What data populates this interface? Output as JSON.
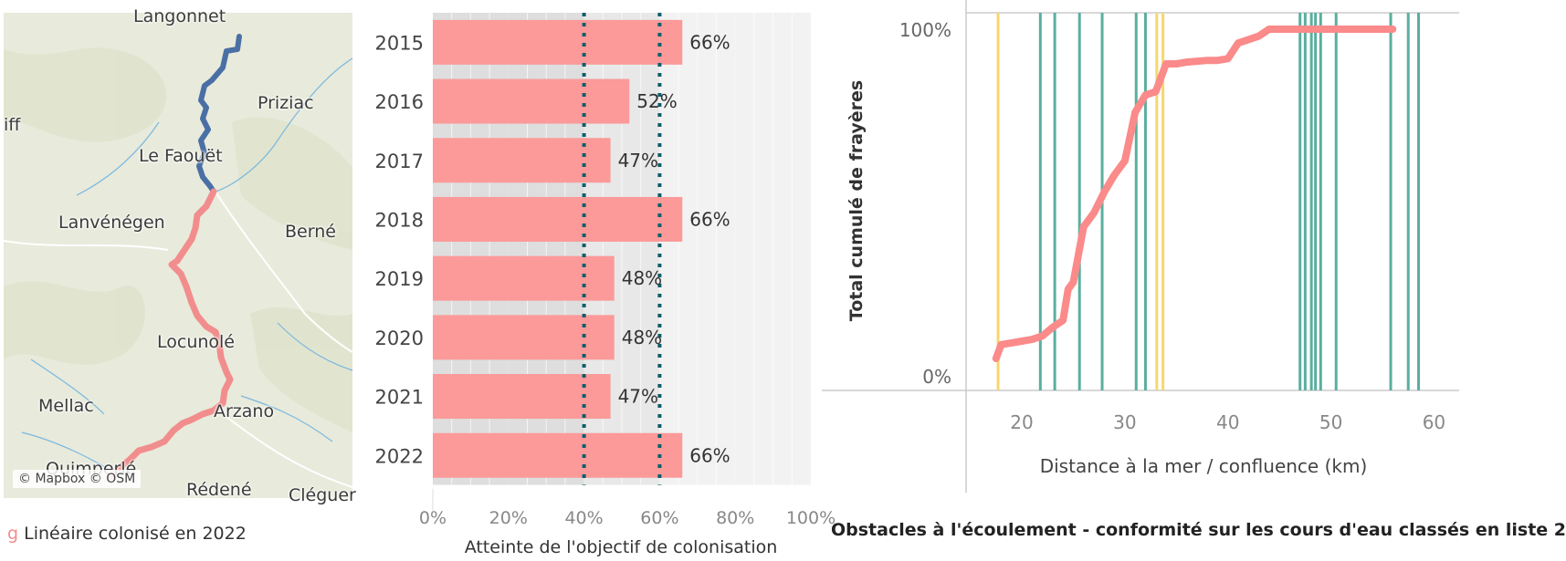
{
  "map": {
    "labels": {
      "langonnet": "Langonnet",
      "priziac": "Priziac",
      "iff": "iff",
      "le_faouet": "Le Faouët",
      "lanvenegen": "Lanvénégen",
      "berne": "Berné",
      "locunolé": "Locunolé",
      "mellac": "Mellac",
      "arzano": "Arzano",
      "quimperle": "Quimperlé",
      "redene": "Rédené",
      "cleguer": "Cléguer"
    },
    "attribution": "© Mapbox © OSM",
    "colors": {
      "colonised": "#f28d8d",
      "upstream": "#4a6fa5",
      "background": "#e8eadb",
      "water": "#7ab8e0"
    }
  },
  "legend": {
    "glyph": "g",
    "text": "Linéaire colonisé en 2022"
  },
  "chart_data": [
    {
      "type": "bar",
      "orientation": "horizontal",
      "categories": [
        "2015",
        "2016",
        "2017",
        "2018",
        "2019",
        "2020",
        "2021",
        "2022"
      ],
      "values": [
        66,
        52,
        47,
        66,
        48,
        48,
        47,
        66
      ],
      "value_labels": [
        "66%",
        "52%",
        "47%",
        "66%",
        "48%",
        "48%",
        "47%",
        "66%"
      ],
      "xlim": [
        0,
        100
      ],
      "x_ticks": [
        "0%",
        "20%",
        "40%",
        "60%",
        "80%",
        "100%"
      ],
      "reference_lines": [
        40,
        60
      ],
      "xlabel": "Atteinte de l'objectif de colonisation",
      "colors": {
        "bar": "#fb9a99",
        "reference_line": "#0b5f6b",
        "band_dark": "#dedede",
        "band_light": "#f2f2f2"
      }
    },
    {
      "type": "line",
      "xlabel": "Distance à la mer / confluence (km)",
      "ylabel": "Total cumulé de frayères",
      "x_ticks": [
        "20",
        "30",
        "40",
        "50",
        "60"
      ],
      "y_ticks": [
        "0%",
        "100%"
      ],
      "xlim": [
        13,
        63
      ],
      "ylim": [
        0,
        100
      ],
      "series": [
        {
          "x": [
            17.5,
            18,
            19,
            20,
            21,
            22,
            23,
            24,
            24.5,
            25,
            26,
            27,
            28,
            29,
            30,
            31,
            32,
            33,
            34,
            35,
            36,
            38,
            39,
            40,
            41,
            42,
            43,
            44,
            45,
            50,
            55,
            56
          ],
          "y": [
            5,
            9,
            9.5,
            10,
            10.5,
            11.5,
            14,
            16,
            25,
            27,
            43,
            47,
            53,
            58,
            62,
            76,
            81,
            82,
            90,
            90,
            90.5,
            91,
            91,
            91.5,
            96,
            97,
            98,
            100,
            100,
            100,
            100,
            100
          ]
        }
      ],
      "vertical_lines_teal_km": [
        21.8,
        23.2,
        25.6,
        27.8,
        31.1,
        32.0,
        47.0,
        47.5,
        48.1,
        48.5,
        49.0,
        50.5,
        55.8,
        57.5,
        58.5
      ],
      "vertical_lines_yellow_km": [
        17.7,
        33.1,
        33.7
      ],
      "colors": {
        "line": "#fb8a8a",
        "teal": "#5aaf9f",
        "yellow": "#f5d76e",
        "axis": "#cccccc"
      }
    }
  ],
  "bottom_title": "Obstacles à l'écoulement - conformité sur les cours d'eau classés en liste 2"
}
